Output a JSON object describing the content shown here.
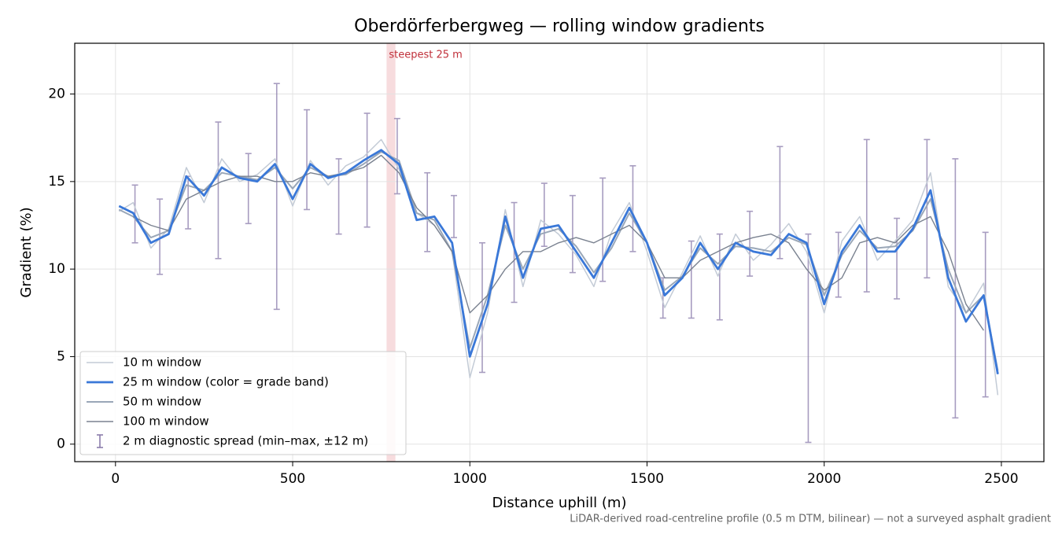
{
  "chart_data": {
    "type": "line",
    "title": "Oberdörferbergweg — rolling window gradients",
    "x_label": "Distance uphill (m)",
    "y_label": "Gradient (%)",
    "caption": "LiDAR-derived road-centreline profile (0.5 m DTM, bilinear) — not a surveyed asphalt gradient",
    "xlim": [
      -115,
      2620
    ],
    "ylim": [
      -1.0,
      22.9
    ],
    "xticks": [
      0,
      500,
      1000,
      1500,
      2000,
      2500
    ],
    "yticks": [
      0,
      5,
      10,
      15,
      20
    ],
    "grid": true,
    "legend": "lower left",
    "x": [
      10,
      50,
      100,
      150,
      200,
      250,
      300,
      350,
      400,
      450,
      500,
      550,
      600,
      650,
      700,
      750,
      800,
      850,
      900,
      950,
      1000,
      1050,
      1100,
      1150,
      1200,
      1250,
      1300,
      1350,
      1400,
      1450,
      1500,
      1550,
      1600,
      1650,
      1700,
      1750,
      1800,
      1850,
      1900,
      1950,
      2000,
      2050,
      2100,
      2150,
      2200,
      2250,
      2300,
      2350,
      2400,
      2450,
      2490
    ],
    "series": [
      {
        "name": "10 m window",
        "color": "#c3cbd6",
        "width": 1.5,
        "values": [
          13.3,
          13.8,
          11.2,
          12.3,
          15.8,
          13.8,
          16.3,
          15.0,
          15.4,
          16.3,
          13.6,
          16.2,
          14.8,
          15.9,
          16.4,
          17.4,
          15.7,
          13.2,
          12.5,
          11.0,
          3.8,
          7.5,
          13.4,
          9.0,
          12.8,
          12.0,
          10.8,
          9.0,
          12.1,
          13.8,
          11.0,
          7.8,
          9.8,
          11.9,
          9.6,
          12.0,
          10.5,
          11.4,
          12.6,
          11.0,
          7.5,
          11.6,
          13.0,
          10.5,
          11.6,
          12.8,
          15.5,
          9.0,
          7.5,
          9.2,
          2.8
        ]
      },
      {
        "name": "25 m window (color = grade band)",
        "color": "#3a78d8",
        "width": 2.8,
        "values": [
          13.6,
          13.2,
          11.5,
          12.0,
          15.3,
          14.2,
          15.8,
          15.2,
          15.0,
          16.0,
          14.0,
          16.0,
          15.2,
          15.5,
          16.2,
          16.8,
          16.0,
          12.8,
          13.0,
          11.5,
          5.0,
          8.0,
          13.0,
          9.5,
          12.3,
          12.5,
          11.0,
          9.5,
          11.5,
          13.5,
          11.5,
          8.5,
          9.5,
          11.5,
          10.0,
          11.5,
          11.0,
          10.8,
          12.0,
          11.5,
          8.0,
          11.0,
          12.5,
          11.0,
          11.0,
          12.3,
          14.5,
          9.5,
          7.0,
          8.5,
          4.0
        ]
      },
      {
        "name": "50 m window",
        "color": "#9aa7b8",
        "width": 2,
        "values": [
          13.4,
          13.0,
          11.8,
          12.2,
          14.8,
          14.5,
          15.5,
          15.3,
          15.1,
          15.8,
          14.6,
          15.8,
          15.3,
          15.4,
          16.0,
          16.7,
          16.2,
          13.2,
          12.8,
          11.0,
          5.5,
          8.5,
          12.5,
          10.0,
          12.0,
          12.3,
          11.3,
          9.8,
          11.2,
          13.2,
          11.5,
          8.8,
          9.6,
          11.2,
          10.3,
          11.3,
          11.2,
          11.0,
          11.8,
          11.4,
          8.5,
          10.8,
          12.2,
          11.2,
          11.3,
          12.2,
          14.0,
          10.0,
          7.5,
          8.5,
          4.2
        ]
      },
      {
        "name": "100 m window",
        "color": "#7a8290",
        "width": 1.4,
        "values": [
          null,
          13.0,
          12.5,
          12.2,
          14.0,
          14.5,
          15.0,
          15.3,
          15.3,
          15.0,
          15.0,
          15.5,
          15.3,
          15.5,
          15.8,
          16.5,
          15.5,
          13.5,
          12.5,
          11.0,
          7.5,
          8.5,
          10.0,
          11.0,
          11.0,
          11.5,
          11.8,
          11.5,
          12.0,
          12.5,
          11.5,
          9.5,
          9.5,
          10.5,
          11.0,
          11.5,
          11.8,
          12.0,
          11.5,
          10.0,
          8.8,
          9.5,
          11.5,
          11.8,
          11.5,
          12.5,
          13.0,
          11.0,
          8.0,
          6.5,
          null
        ]
      }
    ],
    "errorbars": {
      "name": "2 m diagnostic spread (min–max, ±12 m)",
      "color": "#8a7cab",
      "x": [
        55,
        125,
        205,
        290,
        375,
        455,
        540,
        630,
        710,
        795,
        880,
        955,
        1035,
        1125,
        1210,
        1290,
        1375,
        1460,
        1545,
        1625,
        1705,
        1790,
        1875,
        1955,
        2040,
        2120,
        2205,
        2290,
        2370,
        2455
      ],
      "low": [
        11.5,
        9.7,
        12.3,
        10.6,
        12.6,
        7.7,
        13.4,
        12.0,
        12.4,
        14.3,
        11.0,
        11.8,
        4.1,
        8.1,
        11.3,
        9.8,
        9.3,
        11.0,
        7.2,
        7.2,
        7.1,
        9.6,
        10.6,
        0.1,
        8.4,
        8.7,
        8.3,
        9.5,
        1.5,
        2.7
      ],
      "high": [
        14.8,
        14.0,
        15.3,
        18.4,
        16.6,
        20.6,
        19.1,
        16.3,
        18.9,
        18.6,
        15.5,
        14.2,
        11.5,
        13.8,
        14.9,
        14.2,
        15.2,
        15.9,
        9.5,
        11.6,
        12.0,
        13.3,
        17.0,
        12.0,
        12.1,
        17.4,
        12.9,
        17.4,
        16.3,
        12.1
      ]
    },
    "highlight": {
      "x0": 765,
      "x1": 790,
      "color": "#f2c4c8",
      "label": "steepest 25 m",
      "label_color": "#c0303a"
    }
  }
}
